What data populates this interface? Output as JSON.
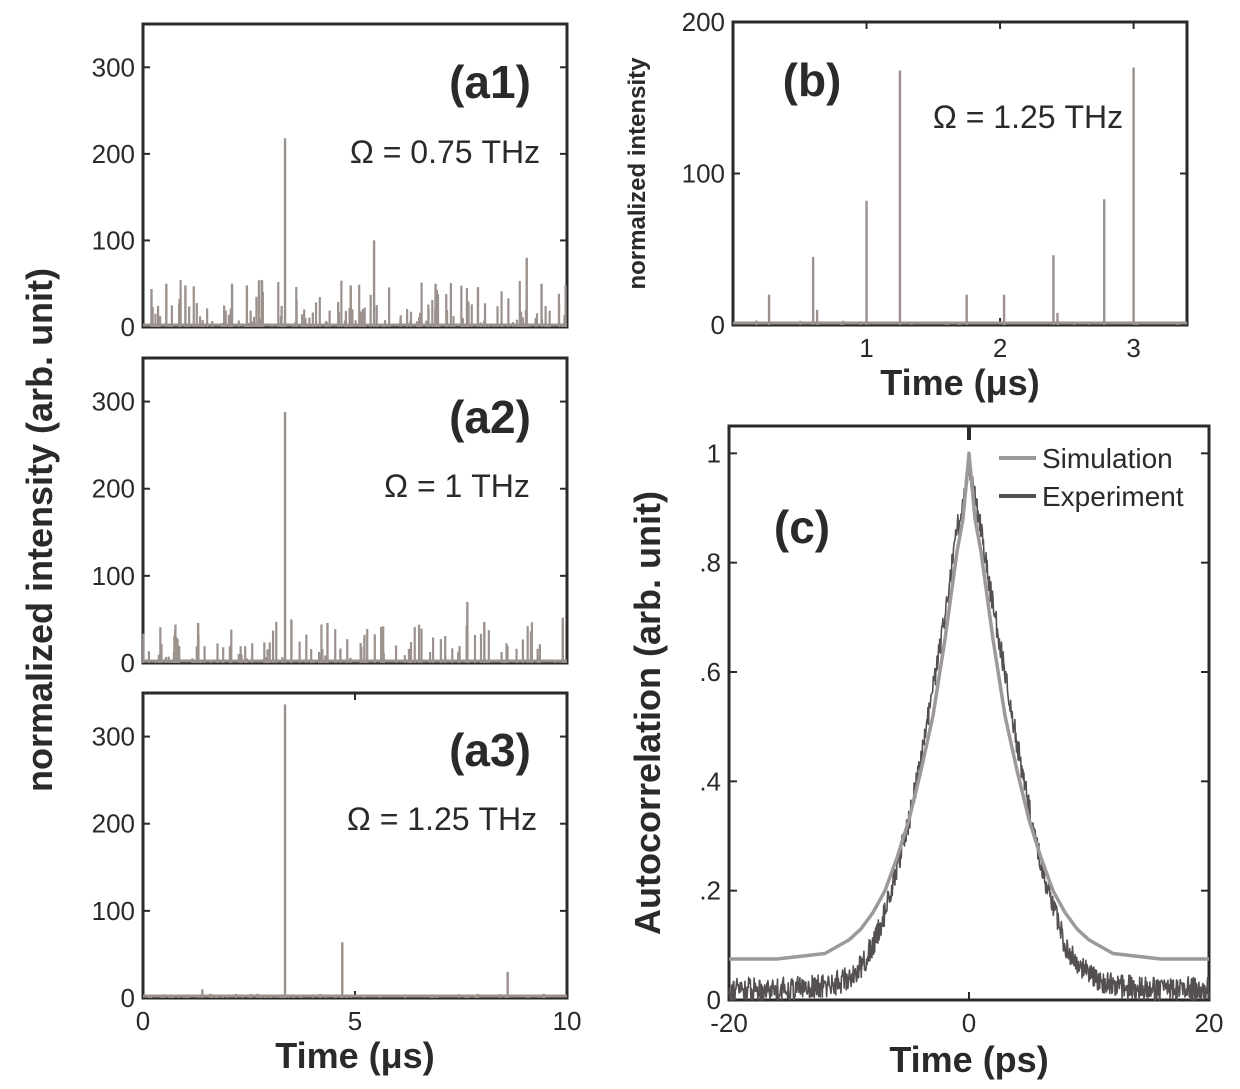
{
  "figure": {
    "shared_ylabel_a": "normalized intensity (arb. unit)",
    "shared_xlabel_a": "Time (μs)"
  },
  "colors": {
    "simulation": "#9e9999",
    "experiment": "#555050",
    "bars": "#9b918d",
    "axis": "#2a2a2a"
  },
  "chart_data": [
    {
      "id": "a1",
      "type": "bar",
      "panel_label": "(a1)",
      "annotation": "Ω = 0.75 THz",
      "xlabel": "",
      "ylabel": "",
      "xlim": [
        0,
        10
      ],
      "ylim": [
        0,
        350
      ],
      "yticks": [
        0,
        100,
        200,
        300
      ],
      "xticks": [],
      "noise": {
        "x_range": [
          0,
          10
        ],
        "count": 170,
        "max": 55,
        "seed": 11
      },
      "x": [
        3.35,
        5.45,
        9.05,
        0.2,
        0.55,
        1.0,
        2.1,
        2.45,
        4.9,
        6.9,
        7.9,
        9.4
      ],
      "values": [
        218,
        100,
        80,
        44,
        50,
        48,
        50,
        48,
        48,
        50,
        46,
        50
      ]
    },
    {
      "id": "a2",
      "type": "bar",
      "panel_label": "(a2)",
      "annotation": "Ω = 1 THz",
      "xlabel": "",
      "ylabel": "",
      "xlim": [
        0,
        10
      ],
      "ylim": [
        0,
        350
      ],
      "yticks": [
        0,
        100,
        200,
        300
      ],
      "xticks": [],
      "noise": {
        "x_range": [
          0,
          10
        ],
        "count": 140,
        "max": 48,
        "seed": 23
      },
      "x": [
        3.35,
        3.5,
        7.65,
        8.05,
        1.3,
        4.35,
        9.9
      ],
      "values": [
        288,
        50,
        70,
        47,
        46,
        46,
        52
      ]
    },
    {
      "id": "a3",
      "type": "bar",
      "panel_label": "(a3)",
      "annotation": "Ω = 1.25 THz",
      "xlabel": "Time (μs)",
      "ylabel": "",
      "xlim": [
        0,
        10
      ],
      "ylim": [
        0,
        350
      ],
      "yticks": [
        0,
        100,
        200,
        300
      ],
      "xticks": [
        0,
        5,
        10
      ],
      "noise": {
        "x_range": [
          0,
          10
        ],
        "count": 90,
        "max": 5,
        "seed": 37
      },
      "x": [
        3.35,
        4.7,
        8.6,
        1.4
      ],
      "values": [
        337,
        64,
        30,
        10
      ]
    },
    {
      "id": "b",
      "type": "bar",
      "panel_label": "(b)",
      "annotation": "Ω = 1.25 THz",
      "xlabel": "Time (μs)",
      "ylabel": "normalized intensity",
      "xlim": [
        0,
        3.4
      ],
      "ylim": [
        0,
        200
      ],
      "yticks": [
        0,
        100,
        200
      ],
      "xticks": [
        1,
        2,
        3
      ],
      "noise": {
        "x_range": [
          0,
          3.4
        ],
        "count": 25,
        "max": 4,
        "seed": 5
      },
      "x": [
        0.27,
        0.6,
        0.63,
        1.0,
        1.25,
        1.75,
        2.03,
        2.4,
        2.43,
        2.78,
        3.0
      ],
      "values": [
        20,
        45,
        10,
        82,
        168,
        20,
        20,
        46,
        8,
        83,
        170
      ]
    },
    {
      "id": "c",
      "type": "line",
      "panel_label": "(c)",
      "xlabel": "Time (ps)",
      "ylabel": "Autocorrelation  (arb. unit)",
      "xlim": [
        -20,
        20
      ],
      "ylim": [
        0,
        1.05
      ],
      "yticks": [
        0,
        0.2,
        0.4,
        0.6,
        0.8,
        1
      ],
      "ytick_labels": [
        "0",
        ".2",
        ".4",
        ".6",
        ".8",
        "1"
      ],
      "xticks": [
        -20,
        0,
        20
      ],
      "legend_position": "top-right",
      "series": [
        {
          "name": "Simulation",
          "x": [
            -20,
            -16,
            -12,
            -10,
            -9,
            -8,
            -7,
            -6,
            -5,
            -4,
            -3,
            -2,
            -1,
            -0.5,
            0,
            0.5,
            1,
            2,
            3,
            4,
            5,
            6,
            7,
            8,
            9,
            10,
            12,
            16,
            20
          ],
          "values": [
            0.075,
            0.075,
            0.085,
            0.11,
            0.13,
            0.16,
            0.2,
            0.26,
            0.33,
            0.42,
            0.52,
            0.66,
            0.82,
            0.88,
            1.0,
            0.88,
            0.82,
            0.66,
            0.52,
            0.42,
            0.33,
            0.26,
            0.2,
            0.16,
            0.13,
            0.11,
            0.085,
            0.075,
            0.075
          ]
        },
        {
          "name": "Experiment",
          "x": [
            -20,
            -16,
            -12,
            -10,
            -9,
            -8,
            -7,
            -6,
            -5,
            -4,
            -3,
            -2,
            -1,
            -0.5,
            0,
            0.5,
            1,
            2,
            3,
            4,
            5,
            6,
            7,
            8,
            9,
            10,
            12,
            16,
            20
          ],
          "values": [
            0.02,
            0.02,
            0.025,
            0.04,
            0.06,
            0.1,
            0.16,
            0.24,
            0.33,
            0.44,
            0.57,
            0.7,
            0.86,
            0.9,
            0.98,
            0.92,
            0.86,
            0.72,
            0.6,
            0.47,
            0.35,
            0.25,
            0.17,
            0.1,
            0.07,
            0.045,
            0.025,
            0.02,
            0.02
          ]
        }
      ]
    }
  ]
}
